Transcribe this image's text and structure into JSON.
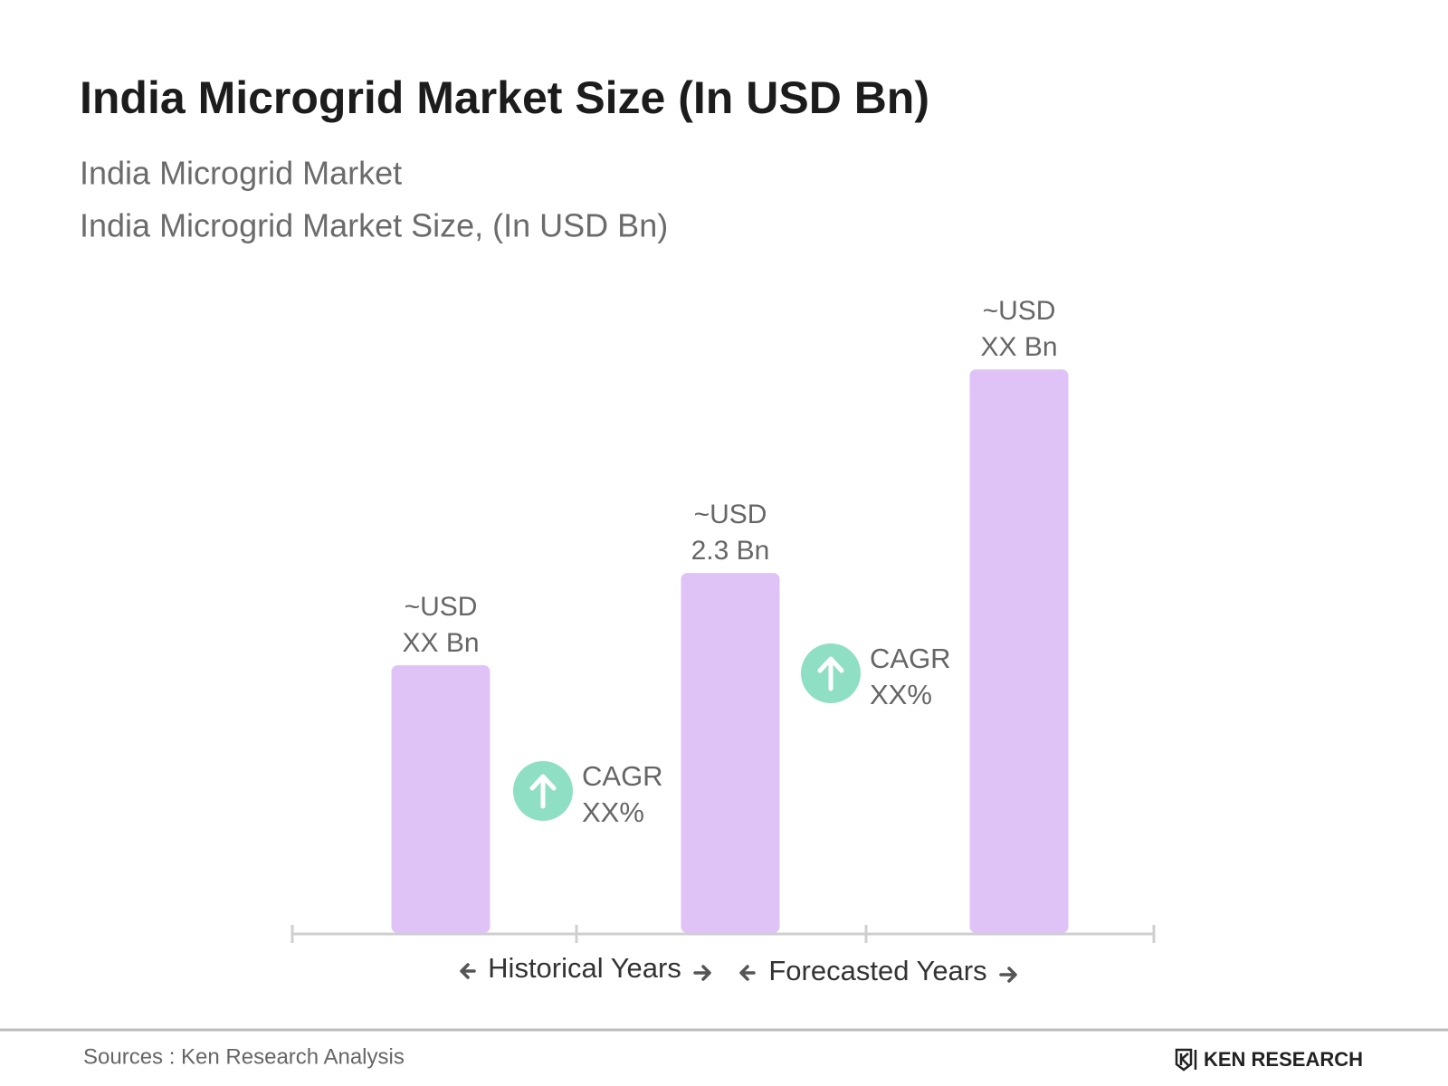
{
  "chart_data": {
    "type": "bar",
    "title": "India Microgrid Market Size (In USD Bn)",
    "subtitle": [
      "India Microgrid Market",
      "India Microgrid Market Size, (In USD Bn)"
    ],
    "categories": [
      null,
      null,
      null
    ],
    "values": [
      1.71,
      2.3,
      3.6
    ],
    "value_labels": [
      [
        "~USD",
        "XX Bn"
      ],
      [
        "~USD",
        "2.3 Bn"
      ],
      [
        "~USD",
        "XX Bn"
      ]
    ],
    "color": "#dfc3f7",
    "ylim": [
      0,
      4
    ],
    "annotations": [
      {
        "label": "CAGR",
        "value": "XX%"
      },
      {
        "label": "CAGR",
        "value": "XX%"
      }
    ],
    "annotation_color": "#8fdfc4",
    "periods": [
      "Historical Years",
      "Forecasted Years"
    ],
    "source": "Sources : Ken Research Analysis",
    "logo": "KEN RESEARCH"
  }
}
